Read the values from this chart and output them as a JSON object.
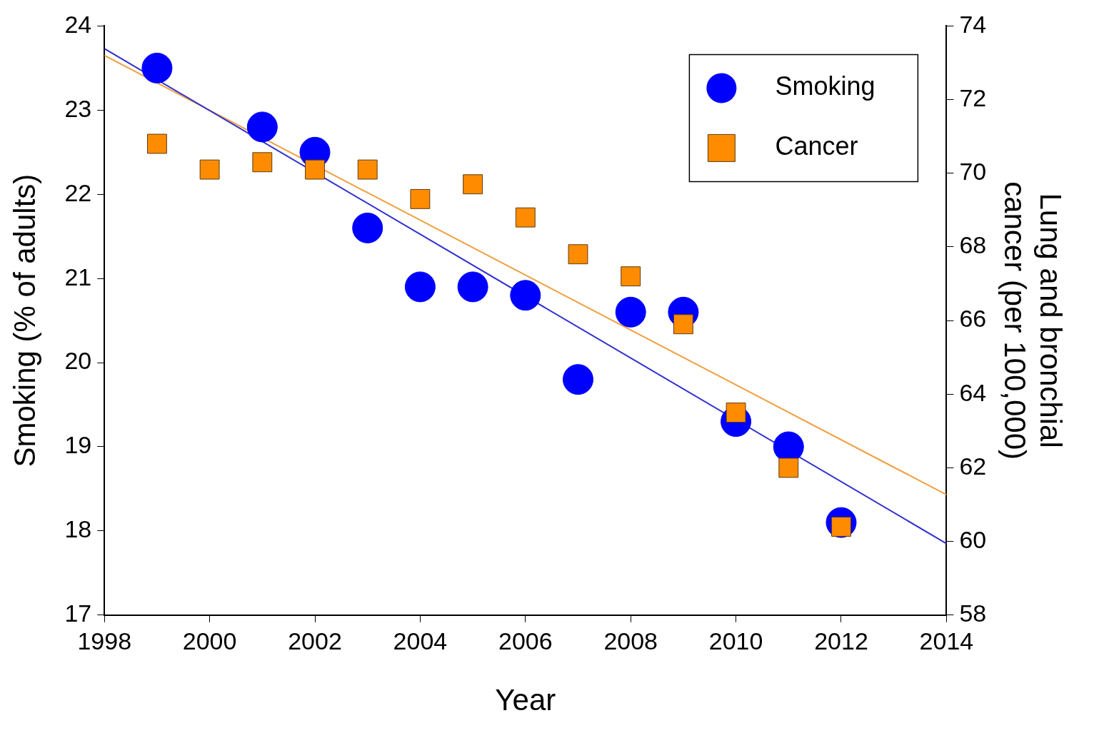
{
  "chart_data": {
    "type": "scatter",
    "xlabel": "Year",
    "ylabel": "Smoking (% of adults)",
    "y2label": "Lung and bronchial\ncancer (per 100,000)",
    "xlim": [
      1998,
      2014
    ],
    "xticks": [
      1998,
      2000,
      2002,
      2004,
      2006,
      2008,
      2010,
      2012,
      2014
    ],
    "ylim": [
      17,
      24
    ],
    "yticks": [
      17,
      18,
      19,
      20,
      21,
      22,
      23,
      24
    ],
    "y2lim": [
      58,
      74
    ],
    "y2ticks": [
      58,
      60,
      62,
      64,
      66,
      68,
      70,
      72,
      74
    ],
    "legend": "top right",
    "series": [
      {
        "name": "Smoking",
        "marker": "circle",
        "color": "#0000ff",
        "x": [
          1999,
          2001,
          2002,
          2003,
          2004,
          2005,
          2006,
          2007,
          2008,
          2009,
          2010,
          2011,
          2012
        ],
        "values": [
          23.5,
          22.8,
          22.5,
          21.6,
          20.9,
          20.9,
          20.8,
          19.8,
          20.6,
          20.6,
          19.3,
          19.0,
          18.1
        ]
      },
      {
        "name": "Cancer",
        "marker": "square",
        "axis": "y2",
        "color": "#ff8c00",
        "x": [
          1999,
          2000,
          2001,
          2002,
          2003,
          2004,
          2005,
          2006,
          2007,
          2008,
          2009,
          2010,
          2011,
          2012
        ],
        "values": [
          70.8,
          70.1,
          70.3,
          70.1,
          70.1,
          69.3,
          69.7,
          68.8,
          67.8,
          67.2,
          65.9,
          63.5,
          62.0,
          60.4
        ]
      },
      {
        "type": "line",
        "marker": "none",
        "color": "#3030d0",
        "x": [
          1998,
          2014
        ],
        "values": [
          23.73,
          17.85
        ]
      },
      {
        "type": "line",
        "marker": "none",
        "axis": "y2",
        "color": "#f0a040",
        "x": [
          1998,
          2014
        ],
        "values": [
          73.2,
          61.27
        ]
      }
    ]
  }
}
